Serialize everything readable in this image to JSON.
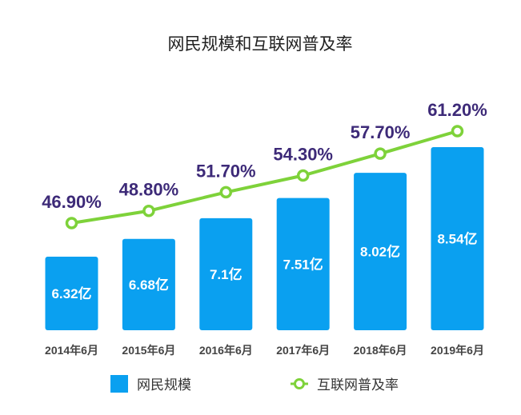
{
  "colors": {
    "bar": "#0aa0f0",
    "line": "#7ed23a",
    "pct_label": "#3d2a78",
    "title": "#222222"
  },
  "chart_data": {
    "type": "bar",
    "title": "网民规模和互联网普及率",
    "categories": [
      "2014年6月",
      "2015年6月",
      "2016年6月",
      "2017年6月",
      "2018年6月",
      "2019年6月"
    ],
    "series": [
      {
        "name": "网民规模",
        "type": "bar",
        "values": [
          6.32,
          6.68,
          7.1,
          7.51,
          8.02,
          8.54
        ],
        "labels": [
          "6.32亿",
          "6.68亿",
          "7.1亿",
          "7.51亿",
          "8.02亿",
          "8.54亿"
        ]
      },
      {
        "name": "互联网普及率",
        "type": "line",
        "values": [
          46.9,
          48.8,
          51.7,
          54.3,
          57.7,
          61.2
        ],
        "labels": [
          "46.90%",
          "48.80%",
          "51.70%",
          "54.30%",
          "57.70%",
          "61.20%"
        ]
      }
    ],
    "legend": "bottom",
    "grid": false
  }
}
